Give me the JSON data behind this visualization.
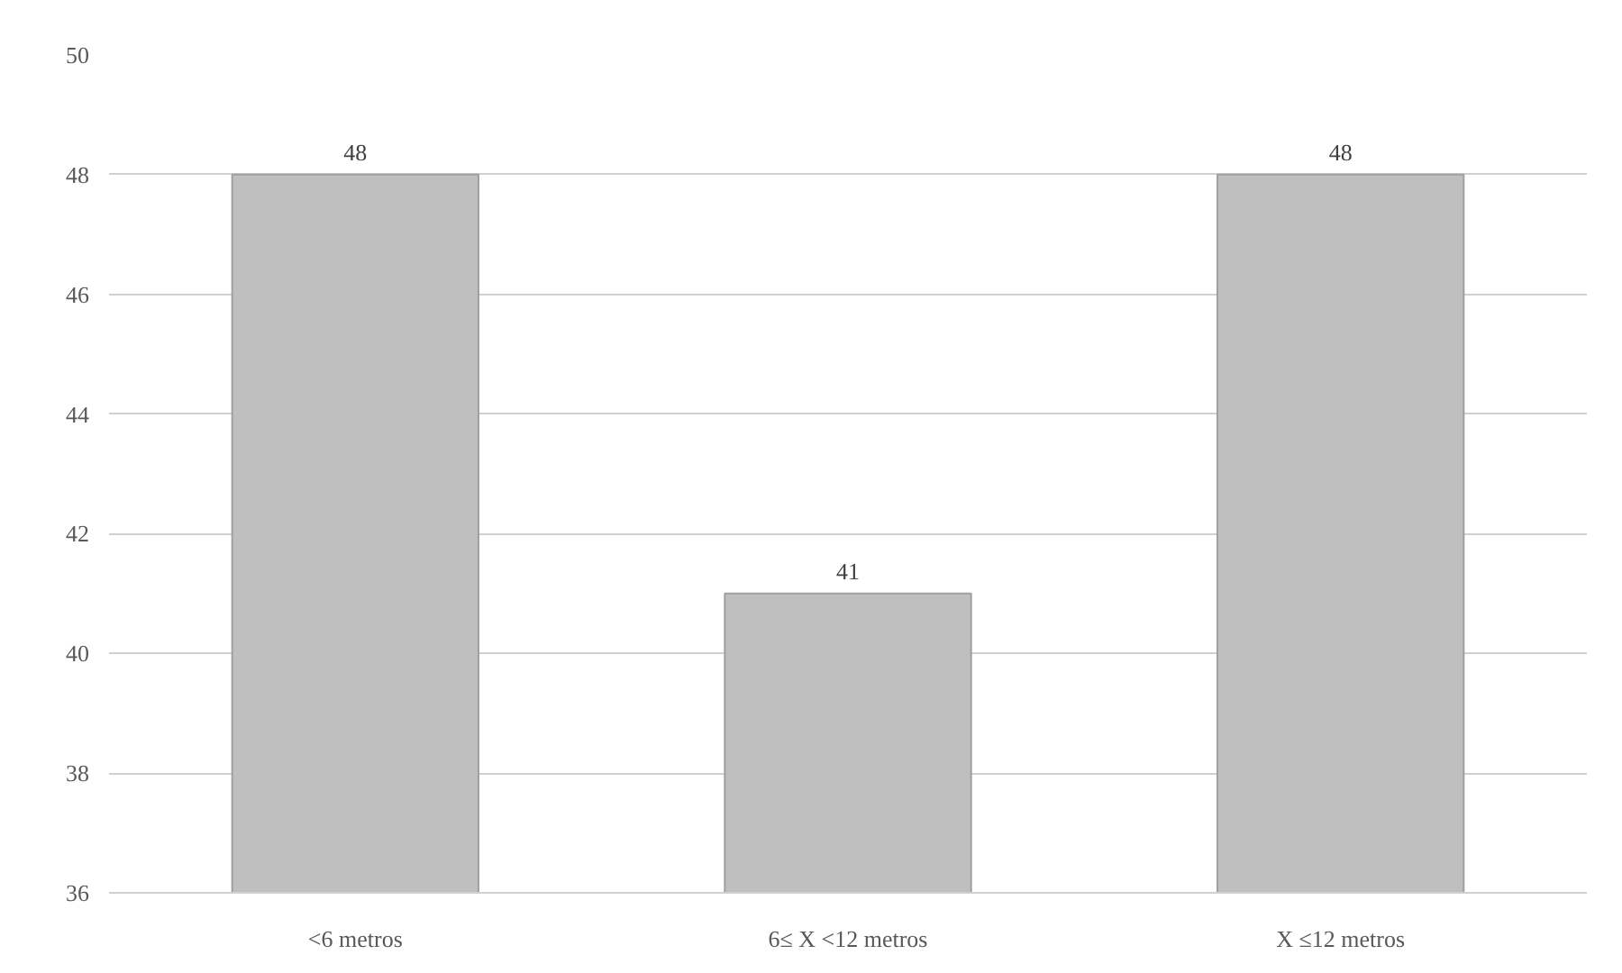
{
  "chart_data": {
    "type": "bar",
    "categories": [
      "<6 metros",
      "6≤ X <12 metros",
      "X ≤12 metros"
    ],
    "values": [
      48,
      41,
      48
    ],
    "color": "#bfbfbf",
    "ylim": [
      36,
      50
    ],
    "yticks": [
      36,
      38,
      40,
      42,
      44,
      46,
      48,
      50
    ],
    "grid": "y",
    "data_labels": true
  }
}
